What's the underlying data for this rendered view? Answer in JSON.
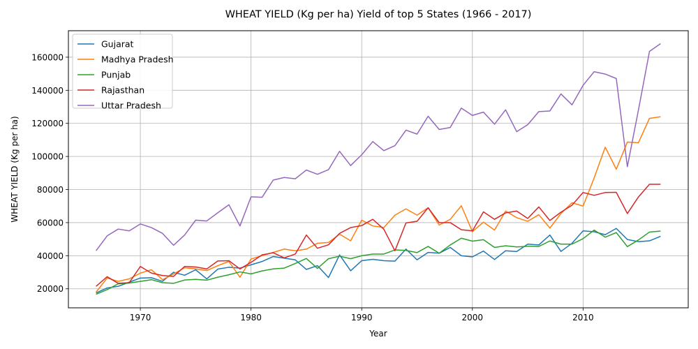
{
  "chart_data": {
    "type": "line",
    "title": "WHEAT YIELD (Kg per ha) Yield of top 5 States (1966 - 2017)",
    "xlabel": "Year",
    "ylabel": "WHEAT YIELD (Kg per ha)",
    "xlim": [
      1963.5,
      2019.5
    ],
    "ylim": [
      8500,
      176000
    ],
    "xticks": [
      1970,
      1980,
      1990,
      2000,
      2010
    ],
    "yticks": [
      20000,
      40000,
      60000,
      80000,
      100000,
      120000,
      140000,
      160000
    ],
    "grid": true,
    "legend": "top-left",
    "x": [
      1966,
      1967,
      1968,
      1969,
      1970,
      1971,
      1972,
      1973,
      1974,
      1975,
      1976,
      1977,
      1978,
      1979,
      1980,
      1981,
      1982,
      1983,
      1984,
      1985,
      1986,
      1987,
      1988,
      1989,
      1990,
      1991,
      1992,
      1993,
      1994,
      1995,
      1996,
      1997,
      1998,
      1999,
      2000,
      2001,
      2002,
      2003,
      2004,
      2005,
      2006,
      2007,
      2008,
      2009,
      2010,
      2011,
      2012,
      2013,
      2014,
      2015,
      2016,
      2017
    ],
    "series": [
      {
        "name": "Gujarat",
        "color": "#1f77b4",
        "values": [
          17500,
          20500,
          21500,
          24000,
          26500,
          26700,
          24500,
          30000,
          28200,
          31500,
          26000,
          31900,
          33000,
          32500,
          34500,
          36500,
          39500,
          38500,
          37500,
          31700,
          34000,
          26800,
          40500,
          30900,
          37000,
          37800,
          37000,
          36700,
          44000,
          37500,
          42000,
          41500,
          45000,
          40000,
          39300,
          42800,
          37700,
          43000,
          42500,
          47000,
          46500,
          52500,
          42600,
          47500,
          55000,
          54500,
          52700,
          56500,
          49800,
          48500,
          49000,
          51700
        ]
      },
      {
        "name": "Madhya Pradesh",
        "color": "#ff7f0e",
        "values": [
          18000,
          26500,
          24500,
          26000,
          29500,
          31500,
          25500,
          29000,
          32700,
          32000,
          31000,
          34000,
          36500,
          27000,
          38000,
          40000,
          42000,
          44000,
          43000,
          44000,
          47500,
          48000,
          53000,
          49000,
          61500,
          58000,
          57000,
          64500,
          68300,
          64500,
          69000,
          58500,
          62000,
          70200,
          54500,
          60300,
          55500,
          67000,
          63000,
          60800,
          64800,
          56700,
          65500,
          72000,
          70000,
          87000,
          105600,
          92300,
          108700,
          108300,
          123000,
          124000
        ]
      },
      {
        "name": "Punjab",
        "color": "#2ca02c",
        "values": [
          16700,
          19500,
          23000,
          23500,
          24500,
          25500,
          23700,
          23300,
          25300,
          25700,
          25200,
          27000,
          28500,
          30200,
          29000,
          30800,
          32000,
          32500,
          35300,
          38300,
          32300,
          38200,
          39700,
          38200,
          40000,
          41000,
          41000,
          43500,
          43200,
          41900,
          45600,
          41500,
          46500,
          50600,
          48800,
          49700,
          45000,
          46000,
          45300,
          45700,
          45600,
          48900,
          47000,
          47000,
          50300,
          55500,
          51200,
          54000,
          45500,
          49500,
          54300,
          54900
        ]
      },
      {
        "name": "Rajasthan",
        "color": "#d62728",
        "values": [
          21500,
          27300,
          23300,
          23700,
          33500,
          29500,
          28000,
          27500,
          33500,
          33200,
          32000,
          36800,
          37000,
          32000,
          36000,
          40500,
          41800,
          38700,
          41000,
          52500,
          44500,
          46600,
          53500,
          57000,
          58200,
          62000,
          56000,
          43000,
          59800,
          60800,
          69000,
          60000,
          60000,
          55700,
          55000,
          66500,
          62000,
          65900,
          67000,
          62500,
          69500,
          61300,
          66300,
          70500,
          78200,
          76500,
          78200,
          78300,
          65500,
          75500,
          83200,
          83200
        ]
      },
      {
        "name": "Uttar Pradesh",
        "color": "#9467bd",
        "values": [
          43000,
          52000,
          56100,
          55000,
          59200,
          57000,
          53500,
          46300,
          52500,
          61500,
          61000,
          66000,
          70800,
          58000,
          75600,
          75300,
          85700,
          87300,
          86500,
          91800,
          89200,
          92000,
          103100,
          94500,
          101000,
          109000,
          103500,
          106500,
          115900,
          113500,
          124300,
          116300,
          117500,
          129200,
          124800,
          126800,
          119500,
          128200,
          115000,
          119200,
          127100,
          127500,
          137800,
          131200,
          143000,
          151200,
          149800,
          147100,
          93800,
          128000,
          163500,
          168200
        ]
      }
    ]
  }
}
